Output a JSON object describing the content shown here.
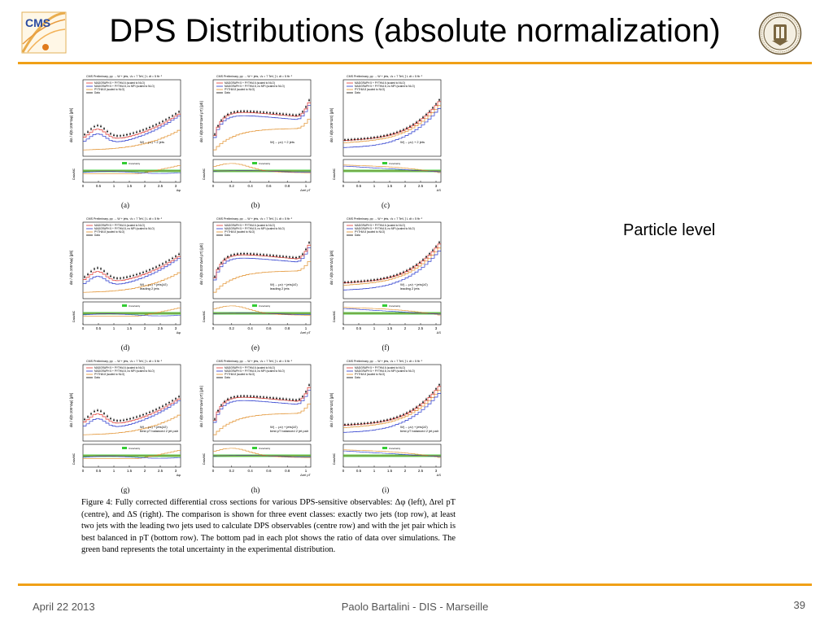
{
  "slide": {
    "title": "DPS Distributions (absolute normalization)",
    "side_note": "Particle level",
    "footer": {
      "date": "April 22 2013",
      "center": "Paolo Bartalini - DIS - Marseille",
      "page": "39"
    }
  },
  "logos": {
    "left": "CMS",
    "right": "university-seal-icon"
  },
  "figure": {
    "header_text": "CMS Preliminary,  pp → W + jets,  √s = 7 TeV,  ∫ L dt = 5 fb⁻¹",
    "legend": [
      "MADGRAPH 5 + PYTHIA 6 (scaled to NLO)",
      "MADGRAPH 5 + PYTHIA 8, no MPI (scaled to NLO)",
      "PYTHIA 8 (scaled to NLO)",
      "Data"
    ],
    "uncertainty_label": "Uncertainty",
    "ratio_label": "Data/MC",
    "panels": [
      {
        "letter": "(a)",
        "ylabel": "dσ / d(0.105*Δφ) [pb]",
        "xlabel": "Δφ",
        "note": [
          "W(→ μν) + 2 jets"
        ],
        "xticks": [
          "0",
          "0.5",
          "1",
          "1.5",
          "2",
          "2.5",
          "3"
        ],
        "kind": "dphi"
      },
      {
        "letter": "(b)",
        "ylabel": "dσ / d(0.033*Δrel pT) [pb]",
        "xlabel": "Δrel pT",
        "note": [
          "W(→ μν) + 2 jets"
        ],
        "xticks": [
          "0",
          "0.2",
          "0.4",
          "0.6",
          "0.8",
          "1"
        ],
        "kind": "drel"
      },
      {
        "letter": "(c)",
        "ylabel": "dσ / d(0.105*ΔS) [pb]",
        "xlabel": "ΔS",
        "note": [
          "W(→ μν) + 2 jets"
        ],
        "xticks": [
          "0",
          "0.5",
          "1",
          "1.5",
          "2",
          "2.5",
          "3"
        ],
        "kind": "ds"
      },
      {
        "letter": "(d)",
        "ylabel": "dσ / d(0.105*Δφ) [pb]",
        "xlabel": "Δφ",
        "note": [
          "W(→ μν) + jets(≥2)",
          "leading 2 jets"
        ],
        "xticks": [
          "0",
          "0.5",
          "1",
          "1.5",
          "2",
          "2.5",
          "3"
        ],
        "kind": "dphi"
      },
      {
        "letter": "(e)",
        "ylabel": "dσ / d(0.033*Δrel pT) [pb]",
        "xlabel": "Δrel pT",
        "note": [
          "W(→ μν) + jets(≥2)",
          "leading 2 jets"
        ],
        "xticks": [
          "0",
          "0.2",
          "0.4",
          "0.6",
          "0.8",
          "1"
        ],
        "kind": "drel"
      },
      {
        "letter": "(f)",
        "ylabel": "dσ / d(0.105*ΔS) [pb]",
        "xlabel": "ΔS",
        "note": [
          "W(→ μν) + jets(≥2)",
          "leading 2 jets"
        ],
        "xticks": [
          "0",
          "0.5",
          "1",
          "1.5",
          "2",
          "2.5",
          "3"
        ],
        "kind": "ds"
      },
      {
        "letter": "(g)",
        "ylabel": "dσ / d(0.105*Δφ) [pb]",
        "xlabel": "Δφ",
        "note": [
          "W(→ μν) + jets(≥2)",
          "best pT balanced 2 jet pair"
        ],
        "xticks": [
          "0",
          "0.5",
          "1",
          "1.5",
          "2",
          "2.5",
          "3"
        ],
        "kind": "dphi"
      },
      {
        "letter": "(h)",
        "ylabel": "dσ / d(0.033*Δrel pT) [pb]",
        "xlabel": "Δrel pT",
        "note": [
          "W(→ μν) + jets(≥2)",
          "best pT balanced 2 jet pair"
        ],
        "xticks": [
          "0",
          "0.2",
          "0.4",
          "0.6",
          "0.8",
          "1"
        ],
        "kind": "drel"
      },
      {
        "letter": "(i)",
        "ylabel": "dσ / d(0.105*ΔS) [pb]",
        "xlabel": "ΔS",
        "note": [
          "W(→ μν) + jets(≥2)",
          "best pT balanced 2 jet pair"
        ],
        "xticks": [
          "0",
          "0.5",
          "1",
          "1.5",
          "2",
          "2.5",
          "3"
        ],
        "kind": "ds"
      }
    ],
    "caption": "Figure 4: Fully corrected differential cross sections for various DPS-sensitive observables: Δφ (left), Δrel pT (centre), and ΔS (right). The comparison is shown for three event classes: exactly two jets (top row), at least two jets with the leading two jets used to calculate DPS observables (centre row) and with the jet pair which is best balanced in pT (bottom row). The bottom pad in each plot shows the ratio of data over simulations. The green band represents the total uncertainty in the experimental distribution."
  },
  "colors": {
    "accent": "#f0a016",
    "madgraph_pythia6": "#e0302a",
    "madgraph_pythia8_nompi": "#2233cc",
    "pythia8": "#e08a20",
    "uncertainty": "#33cc33",
    "data": "#000000"
  }
}
